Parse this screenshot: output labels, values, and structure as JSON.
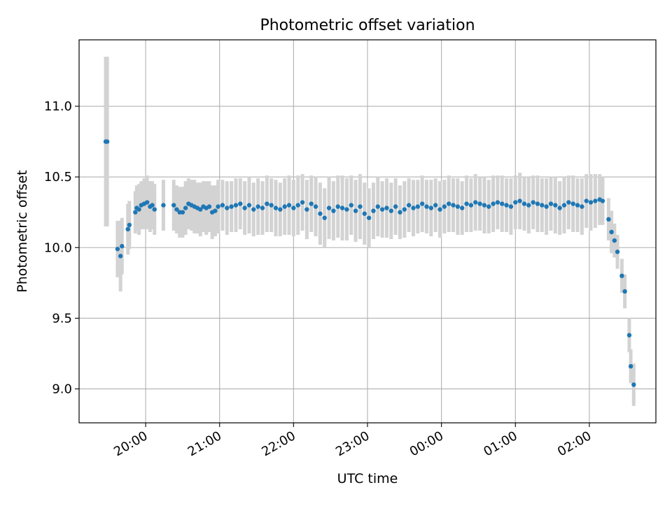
{
  "chart_data": {
    "type": "scatter",
    "title": "Photometric offset variation",
    "xlabel": "UTC time",
    "ylabel": "Photometric offset",
    "x_unit": "hours (UTC, continuous across midnight)",
    "xlim": [
      19.1,
      26.9
    ],
    "ylim": [
      8.76,
      11.47
    ],
    "x_ticks": [
      {
        "value": 20,
        "label": "20:00"
      },
      {
        "value": 21,
        "label": "21:00"
      },
      {
        "value": 22,
        "label": "22:00"
      },
      {
        "value": 23,
        "label": "23:00"
      },
      {
        "value": 24,
        "label": "00:00"
      },
      {
        "value": 25,
        "label": "01:00"
      },
      {
        "value": 26,
        "label": "02:00"
      }
    ],
    "y_ticks": [
      {
        "value": 9.0,
        "label": "9.0"
      },
      {
        "value": 9.5,
        "label": "9.5"
      },
      {
        "value": 10.0,
        "label": "10.0"
      },
      {
        "value": 10.5,
        "label": "10.5"
      },
      {
        "value": 11.0,
        "label": "11.0"
      }
    ],
    "grid": true,
    "colors": {
      "points": "#1f77b4",
      "errorbars": "#d3d3d3",
      "grid": "#b0b0b0"
    },
    "series": [
      {
        "x": [
          19.46,
          19.48,
          19.62,
          19.66,
          19.68,
          19.76,
          19.78,
          19.86,
          19.88,
          19.91,
          19.94,
          19.98,
          20.02,
          20.06,
          20.09,
          20.12,
          20.24,
          20.38,
          20.42,
          20.46,
          20.5,
          20.54,
          20.58,
          20.62,
          20.66,
          20.7,
          20.74,
          20.78,
          20.82,
          20.86,
          20.9,
          20.94,
          20.98,
          21.04,
          21.1,
          21.16,
          21.22,
          21.28,
          21.34,
          21.4,
          21.46,
          21.52,
          21.58,
          21.64,
          21.7,
          21.76,
          21.82,
          21.88,
          21.94,
          22.0,
          22.06,
          22.12,
          22.18,
          22.24,
          22.3,
          22.36,
          22.42,
          22.48,
          22.54,
          22.6,
          22.66,
          22.72,
          22.78,
          22.84,
          22.9,
          22.96,
          23.02,
          23.08,
          23.14,
          23.2,
          23.26,
          23.32,
          23.38,
          23.44,
          23.5,
          23.56,
          23.62,
          23.68,
          23.74,
          23.8,
          23.86,
          23.92,
          23.98,
          24.04,
          24.1,
          24.16,
          24.22,
          24.28,
          24.34,
          24.4,
          24.46,
          24.52,
          24.58,
          24.64,
          24.7,
          24.76,
          24.82,
          24.88,
          24.94,
          25.0,
          25.06,
          25.12,
          25.18,
          25.24,
          25.3,
          25.36,
          25.42,
          25.48,
          25.54,
          25.6,
          25.66,
          25.72,
          25.78,
          25.84,
          25.9,
          25.96,
          26.02,
          26.08,
          26.14,
          26.18,
          26.26,
          26.3,
          26.34,
          26.38,
          26.44,
          26.48,
          26.54,
          26.56,
          26.6
        ],
        "y": [
          10.75,
          10.75,
          9.99,
          9.94,
          10.01,
          10.13,
          10.16,
          10.25,
          10.28,
          10.27,
          10.3,
          10.31,
          10.32,
          10.29,
          10.3,
          10.27,
          10.3,
          10.3,
          10.27,
          10.25,
          10.25,
          10.28,
          10.31,
          10.3,
          10.29,
          10.28,
          10.27,
          10.29,
          10.28,
          10.29,
          10.25,
          10.26,
          10.29,
          10.3,
          10.28,
          10.29,
          10.3,
          10.31,
          10.28,
          10.3,
          10.27,
          10.29,
          10.28,
          10.31,
          10.3,
          10.28,
          10.27,
          10.29,
          10.3,
          10.28,
          10.3,
          10.32,
          10.27,
          10.31,
          10.29,
          10.24,
          10.21,
          10.28,
          10.26,
          10.29,
          10.28,
          10.27,
          10.3,
          10.26,
          10.29,
          10.24,
          10.21,
          10.26,
          10.29,
          10.27,
          10.28,
          10.26,
          10.29,
          10.25,
          10.27,
          10.3,
          10.28,
          10.29,
          10.31,
          10.29,
          10.28,
          10.3,
          10.27,
          10.29,
          10.31,
          10.3,
          10.29,
          10.28,
          10.31,
          10.3,
          10.32,
          10.31,
          10.3,
          10.29,
          10.31,
          10.32,
          10.31,
          10.3,
          10.29,
          10.32,
          10.33,
          10.31,
          10.3,
          10.32,
          10.31,
          10.3,
          10.29,
          10.31,
          10.3,
          10.28,
          10.3,
          10.32,
          10.31,
          10.3,
          10.29,
          10.33,
          10.32,
          10.33,
          10.34,
          10.33,
          10.2,
          10.11,
          10.05,
          9.97,
          9.8,
          9.69,
          9.38,
          9.16,
          9.03
        ],
        "err": [
          0.6,
          0.6,
          0.2,
          0.25,
          0.2,
          0.18,
          0.17,
          0.15,
          0.16,
          0.18,
          0.17,
          0.18,
          0.19,
          0.18,
          0.17,
          0.18,
          0.18,
          0.18,
          0.17,
          0.18,
          0.18,
          0.19,
          0.18,
          0.18,
          0.19,
          0.18,
          0.19,
          0.18,
          0.19,
          0.18,
          0.19,
          0.18,
          0.19,
          0.18,
          0.19,
          0.18,
          0.19,
          0.18,
          0.19,
          0.2,
          0.19,
          0.2,
          0.19,
          0.2,
          0.19,
          0.2,
          0.19,
          0.2,
          0.21,
          0.2,
          0.21,
          0.2,
          0.21,
          0.2,
          0.21,
          0.22,
          0.21,
          0.22,
          0.21,
          0.22,
          0.23,
          0.22,
          0.21,
          0.22,
          0.23,
          0.22,
          0.21,
          0.2,
          0.21,
          0.2,
          0.21,
          0.2,
          0.2,
          0.19,
          0.2,
          0.19,
          0.2,
          0.19,
          0.2,
          0.19,
          0.2,
          0.19,
          0.2,
          0.19,
          0.2,
          0.19,
          0.2,
          0.19,
          0.2,
          0.19,
          0.2,
          0.19,
          0.2,
          0.19,
          0.2,
          0.19,
          0.2,
          0.19,
          0.2,
          0.19,
          0.2,
          0.19,
          0.2,
          0.19,
          0.2,
          0.19,
          0.2,
          0.19,
          0.2,
          0.19,
          0.2,
          0.19,
          0.2,
          0.19,
          0.2,
          0.19,
          0.2,
          0.19,
          0.18,
          0.17,
          0.15,
          0.15,
          0.12,
          0.12,
          0.12,
          0.12,
          0.12,
          0.12,
          0.15
        ]
      }
    ]
  }
}
